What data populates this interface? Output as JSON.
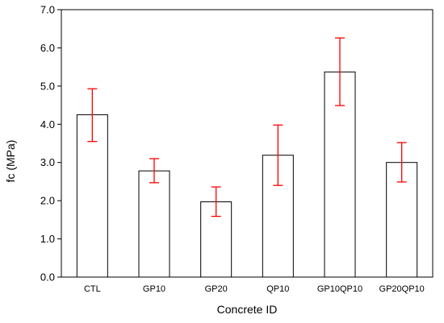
{
  "chart_data": {
    "type": "bar",
    "title": "",
    "xlabel": "Concrete ID",
    "ylabel": "fc (MPa)",
    "ylim": [
      0,
      7
    ],
    "yticks": [
      "0.0",
      "1.0",
      "2.0",
      "3.0",
      "4.0",
      "5.0",
      "6.0",
      "7.0"
    ],
    "categories": [
      "CTL",
      "GP10",
      "GP20",
      "QP10",
      "GP10QP10",
      "GP20QP10"
    ],
    "values": [
      4.25,
      2.78,
      1.97,
      3.19,
      5.37,
      3.0
    ],
    "error_low": [
      3.55,
      2.47,
      1.59,
      2.4,
      4.49,
      2.49
    ],
    "error_high": [
      4.93,
      3.1,
      2.36,
      3.98,
      6.26,
      3.52
    ],
    "bar_fill": "#ffffff",
    "bar_stroke": "#000000",
    "error_color": "#ff0000",
    "grid": false,
    "legend": false
  }
}
